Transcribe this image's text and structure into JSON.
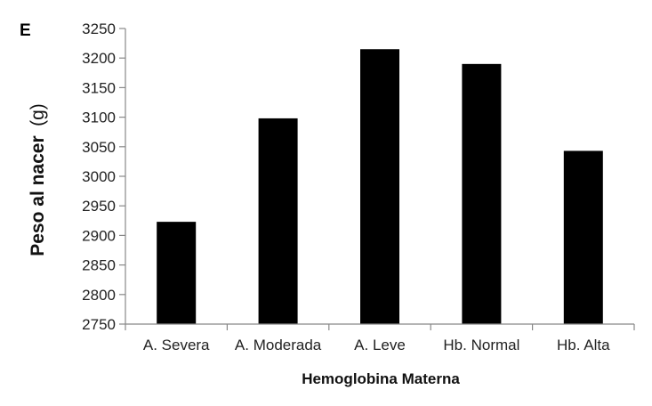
{
  "chart_data": {
    "type": "bar",
    "panel_label": "E",
    "categories": [
      "A. Severa",
      "A. Moderada",
      "A. Leve",
      "Hb. Normal",
      "Hb. Alta"
    ],
    "values": [
      2923,
      3098,
      3215,
      3190,
      3043
    ],
    "xlabel": "Hemoglobina Materna",
    "ylabel": "Peso al nacer",
    "ylabel_unit": "(g)",
    "ylim": [
      2750,
      3250
    ],
    "yticks": [
      2750,
      2800,
      2850,
      2900,
      2950,
      3000,
      3050,
      3100,
      3150,
      3200,
      3250
    ],
    "grid": false,
    "legend": "none",
    "bar_color": "#000000",
    "axis_color": "#888888"
  }
}
